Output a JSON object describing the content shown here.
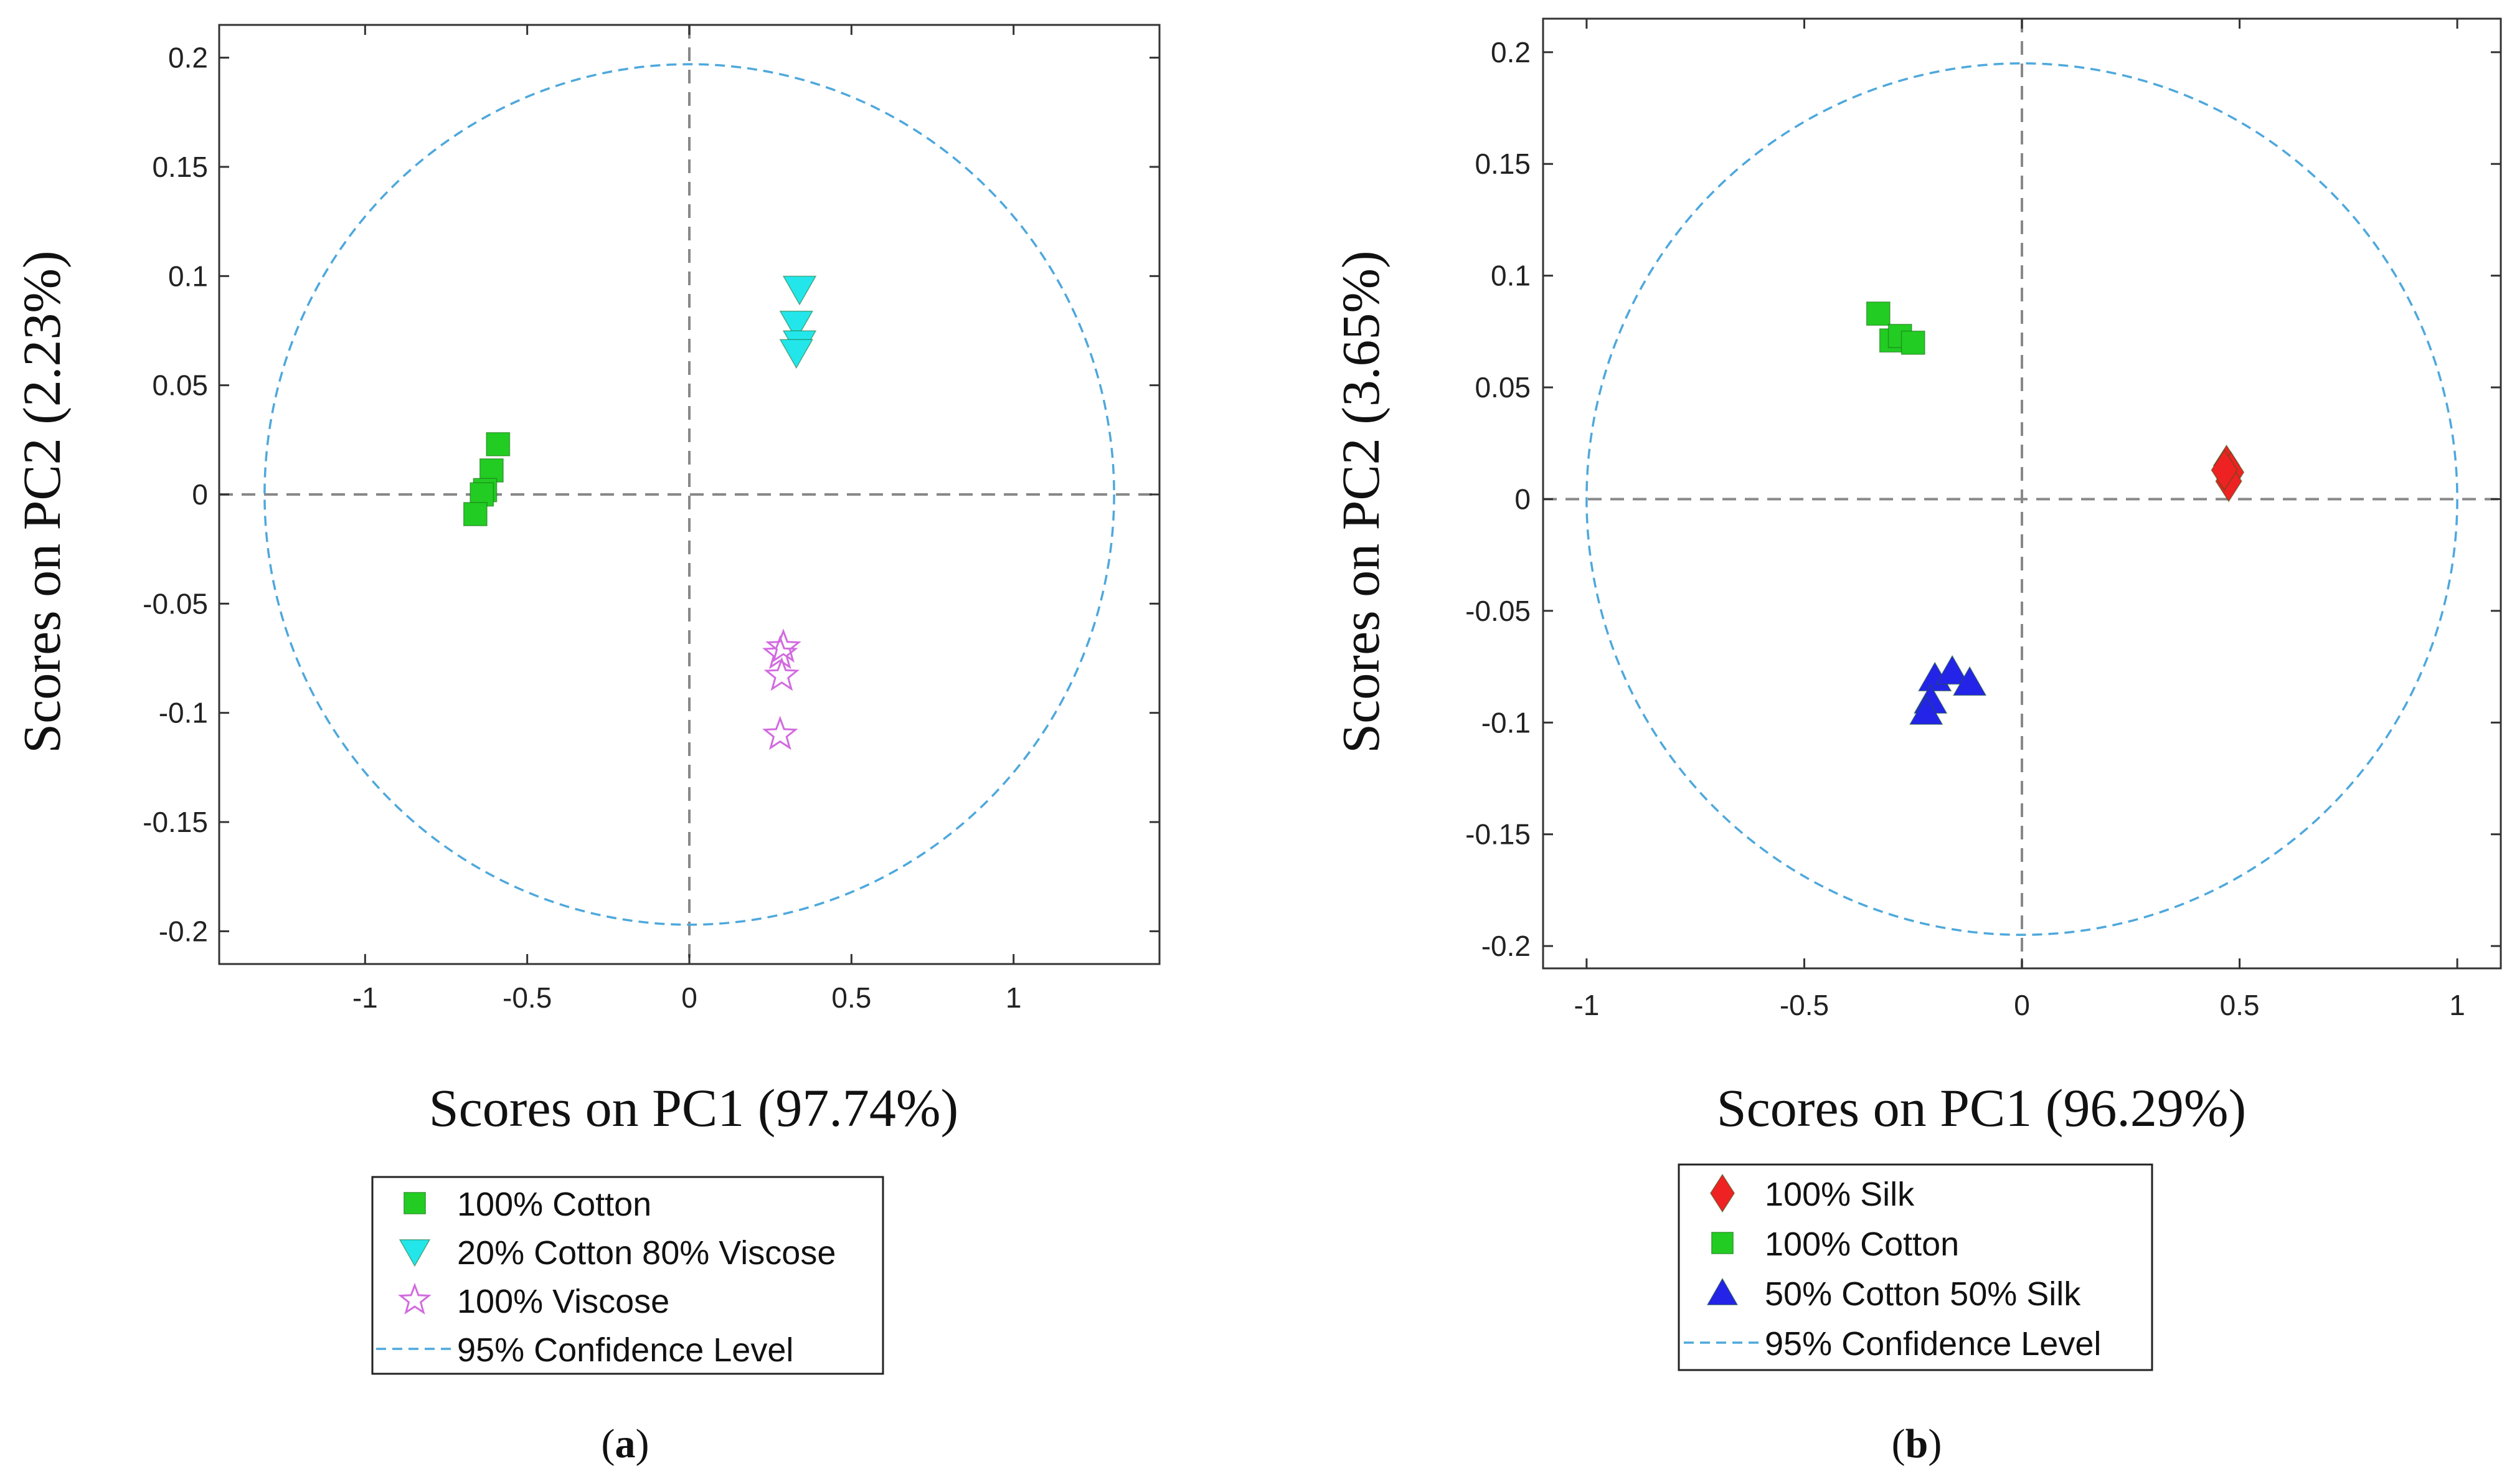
{
  "colors": {
    "cotton": "#22cc22",
    "blend_viscose": "#22e6ea",
    "viscose": "#d26be0",
    "silk": "#ee2222",
    "blend_silk": "#2424e8",
    "confidence": "#4ea8dc",
    "axis": "#333333",
    "zero_line": "#888888"
  },
  "chart_data": [
    {
      "type": "scatter",
      "panel_label": "a",
      "xlabel": "Scores on PC1 (97.74%)",
      "ylabel": "Scores on PC2 (2.23%)",
      "xlim": [
        -1.45,
        1.45
      ],
      "ylim": [
        -0.215,
        0.215
      ],
      "xticks": [
        -1,
        -0.5,
        0,
        0.5,
        1
      ],
      "xtick_labels": [
        "-1",
        "-0.5",
        "0",
        "0.5",
        "1"
      ],
      "yticks": [
        -0.2,
        -0.15,
        -0.1,
        -0.05,
        0,
        0.05,
        0.1,
        0.15,
        0.2
      ],
      "ytick_labels": [
        "-0.2",
        "-0.15",
        "-0.1",
        "-0.05",
        "0",
        "0.05",
        "0.1",
        "0.15",
        "0.2"
      ],
      "confidence_ellipse": {
        "label": "95% Confidence Level",
        "rx": 1.31,
        "ry": 0.197
      },
      "series": [
        {
          "name": "100% Cotton",
          "marker": "square",
          "color_key": "cotton",
          "x": [
            -0.59,
            -0.61,
            -0.63,
            -0.64,
            -0.66
          ],
          "y": [
            0.023,
            0.011,
            0.002,
            0.0,
            -0.009
          ]
        },
        {
          "name": "20% Cotton 80% Viscose",
          "marker": "triangle-down",
          "color_key": "blend_viscose",
          "x": [
            0.34,
            0.33,
            0.34,
            0.33
          ],
          "y": [
            0.094,
            0.078,
            0.069,
            0.065
          ]
        },
        {
          "name": "100% Viscose",
          "marker": "star",
          "color_key": "viscose",
          "x": [
            0.29,
            0.28,
            0.285,
            0.28
          ],
          "y": [
            -0.07,
            -0.073,
            -0.083,
            -0.11
          ]
        }
      ]
    },
    {
      "type": "scatter",
      "panel_label": "b",
      "xlabel": "Scores on PC1 (96.29%)",
      "ylabel": "Scores on PC2 (3.65%)",
      "xlim": [
        -1.1,
        1.1
      ],
      "ylim": [
        -0.21,
        0.215
      ],
      "xticks": [
        -1,
        -0.5,
        0,
        0.5,
        1
      ],
      "xtick_labels": [
        "-1",
        "-0.5",
        "0",
        "0.5",
        "1"
      ],
      "yticks": [
        -0.2,
        -0.15,
        -0.1,
        -0.05,
        0,
        0.05,
        0.1,
        0.15,
        0.2
      ],
      "ytick_labels": [
        "-0.2",
        "-0.15",
        "-0.1",
        "-0.05",
        "0",
        "0.05",
        "0.1",
        "0.15",
        "0.2"
      ],
      "confidence_ellipse": {
        "label": "95% Confidence Level",
        "rx": 1.0,
        "ry": 0.195
      },
      "series": [
        {
          "name": "100% Silk",
          "marker": "diamond",
          "color_key": "silk",
          "x": [
            0.47,
            0.48,
            0.475,
            0.465
          ],
          "y": [
            0.015,
            0.012,
            0.008,
            0.013
          ]
        },
        {
          "name": "100% Cotton",
          "marker": "square",
          "color_key": "cotton",
          "x": [
            -0.33,
            -0.3,
            -0.28,
            -0.25
          ],
          "y": [
            0.083,
            0.071,
            0.073,
            0.07
          ]
        },
        {
          "name": "50% Cotton 50% Silk",
          "marker": "triangle-up",
          "color_key": "blend_silk",
          "x": [
            -0.2,
            -0.16,
            -0.12,
            -0.21,
            -0.22
          ],
          "y": [
            -0.08,
            -0.077,
            -0.082,
            -0.09,
            -0.095
          ]
        }
      ]
    }
  ]
}
